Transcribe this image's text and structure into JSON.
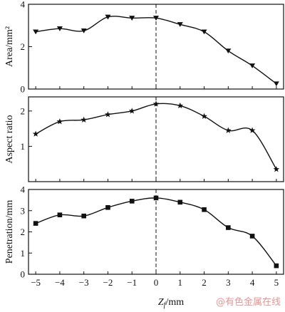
{
  "chart_data": [
    {
      "type": "line",
      "xlabel": "",
      "ylabel": "Area/mm²",
      "ylim": [
        0,
        4
      ],
      "yticks": [
        0,
        2,
        4
      ],
      "xlim": [
        -5.3,
        5.3
      ],
      "xticks": [
        -5,
        -4,
        -3,
        -2,
        -1,
        0,
        1,
        2,
        3,
        4,
        5
      ],
      "marker": "triangle-down",
      "reference_line": 0,
      "series": [
        {
          "x": [
            -5,
            -4,
            -3,
            -2,
            -1,
            0,
            1,
            2,
            3,
            4,
            5
          ],
          "y": [
            2.7,
            2.85,
            2.75,
            3.4,
            3.35,
            3.35,
            3.05,
            2.7,
            1.8,
            1.1,
            0.25
          ]
        }
      ]
    },
    {
      "type": "line",
      "xlabel": "",
      "ylabel": "Aspect ratio",
      "ylim": [
        0,
        2.4
      ],
      "yticks": [
        1,
        2
      ],
      "xlim": [
        -5.3,
        5.3
      ],
      "xticks": [
        -5,
        -4,
        -3,
        -2,
        -1,
        0,
        1,
        2,
        3,
        4,
        5
      ],
      "marker": "star",
      "reference_line": 0,
      "series": [
        {
          "x": [
            -5,
            -4,
            -3,
            -2,
            -1,
            0,
            1,
            2,
            3,
            4,
            5
          ],
          "y": [
            1.35,
            1.7,
            1.75,
            1.9,
            2.0,
            2.2,
            2.15,
            1.85,
            1.45,
            1.45,
            0.35
          ]
        }
      ]
    },
    {
      "type": "line",
      "xlabel": "Z_f/mm",
      "ylabel": "Penetration/mm",
      "ylim": [
        0,
        4
      ],
      "yticks": [
        0,
        1,
        2,
        3,
        4
      ],
      "xlim": [
        -5.3,
        5.3
      ],
      "xticks": [
        -5,
        -4,
        -3,
        -2,
        -1,
        0,
        1,
        2,
        3,
        4,
        5
      ],
      "marker": "square",
      "reference_line": 0,
      "series": [
        {
          "x": [
            -5,
            -4,
            -3,
            -2,
            -1,
            0,
            1,
            2,
            3,
            4,
            5
          ],
          "y": [
            2.4,
            2.8,
            2.75,
            3.15,
            3.45,
            3.6,
            3.4,
            3.05,
            2.2,
            1.8,
            0.4
          ]
        }
      ]
    }
  ],
  "xaxis": {
    "label_main": "Z",
    "label_sub": "f",
    "label_unit": "/mm"
  },
  "watermark": "@有色金属在线"
}
